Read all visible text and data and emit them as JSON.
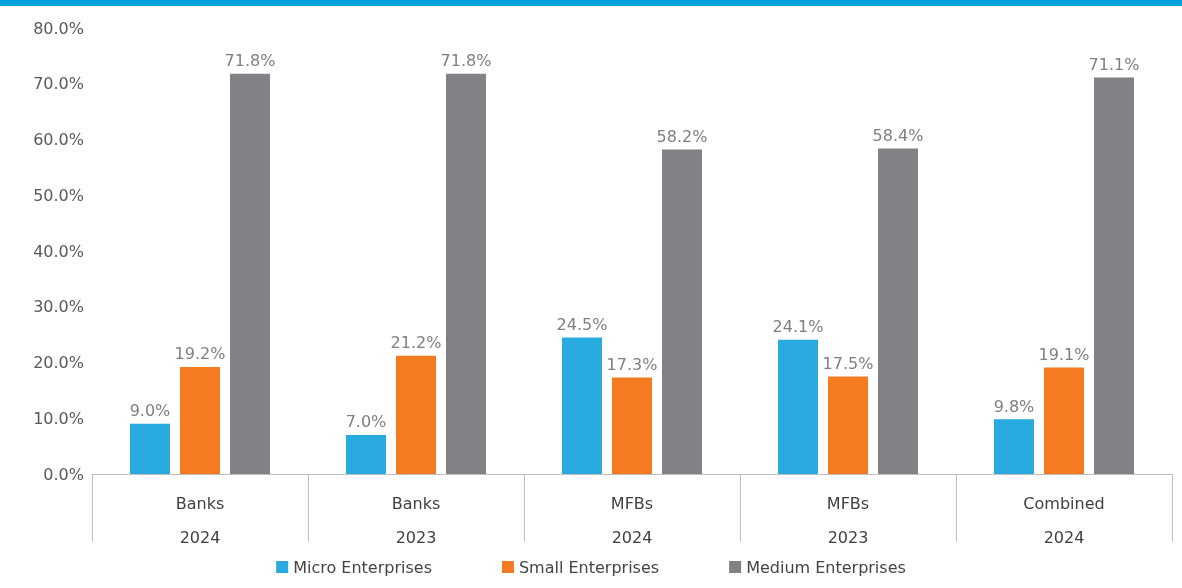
{
  "chart_data": {
    "type": "bar",
    "categories": [
      "Banks\n2024",
      "Banks\n2023",
      "MFBs\n2024",
      "MFBs\n2023",
      "Combined\n2024"
    ],
    "series": [
      {
        "name": "Micro Enterprises",
        "color": "#29abe2",
        "values": [
          9.0,
          7.0,
          24.5,
          24.1,
          9.8
        ],
        "value_labels": [
          "9.0%",
          "7.0%",
          "24.5%",
          "24.1%",
          "9.8%"
        ]
      },
      {
        "name": "Small Enterprises",
        "color": "#f47b20",
        "values": [
          19.2,
          21.2,
          17.3,
          17.5,
          19.1
        ],
        "value_labels": [
          "19.2%",
          "21.2%",
          "17.3%",
          "17.5%",
          "19.1%"
        ]
      },
      {
        "name": "Medium Enterprises",
        "color": "#808285",
        "values": [
          71.8,
          71.8,
          58.2,
          58.4,
          71.1
        ],
        "value_labels": [
          "71.8%",
          "71.8%",
          "58.2%",
          "58.4%",
          "71.1%"
        ]
      }
    ],
    "ylim": [
      0,
      80
    ],
    "yticks": [
      {
        "value": 0,
        "label": "0.0%"
      },
      {
        "value": 10,
        "label": "10.0%"
      },
      {
        "value": 20,
        "label": "20.0%"
      },
      {
        "value": 30,
        "label": "30.0%"
      },
      {
        "value": 40,
        "label": "40.0%"
      },
      {
        "value": 50,
        "label": "50.0%"
      },
      {
        "value": 60,
        "label": "60.0%"
      },
      {
        "value": 70,
        "label": "70.0%"
      },
      {
        "value": 80,
        "label": "80.0%"
      }
    ],
    "grid": false,
    "legend": "bottom"
  }
}
